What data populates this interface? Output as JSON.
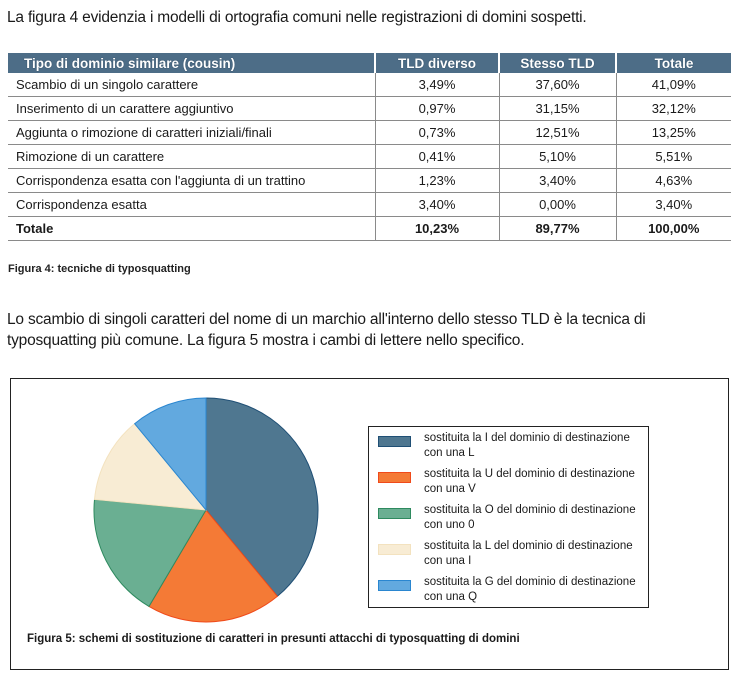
{
  "intro_text": "La figura 4 evidenzia i modelli di ortografia comuni nelle registrazioni di domini sospetti.",
  "table": {
    "headers": [
      "Tipo di dominio similare (cousin)",
      "TLD diverso",
      "Stesso TLD",
      "Totale"
    ],
    "header_color": "#4d6d87",
    "rows": [
      [
        "Scambio di un singolo carattere",
        "3,49%",
        "37,60%",
        "41,09%"
      ],
      [
        "Inserimento di un carattere aggiuntivo",
        "0,97%",
        "31,15%",
        "32,12%"
      ],
      [
        "Aggiunta o rimozione di caratteri iniziali/finali",
        "0,73%",
        "12,51%",
        "13,25%"
      ],
      [
        "Rimozione di un carattere",
        "0,41%",
        "5,10%",
        "5,51%"
      ],
      [
        "Corrispondenza esatta con l'aggiunta di un trattino",
        "1,23%",
        "3,40%",
        "4,63%"
      ],
      [
        "Corrispondenza esatta",
        "3,40%",
        "0,00%",
        "3,40%"
      ]
    ],
    "total_row": [
      "Totale",
      "10,23%",
      "89,77%",
      "100,00%"
    ]
  },
  "figure4_caption": "Figura 4: tecniche di typosquatting",
  "paragraph": "Lo scambio di singoli caratteri del nome di un marchio all'interno dello stesso TLD è la tecnica di typosquatting più comune. La figura 5 mostra i cambi di lettere nello specifico.",
  "chart_data": {
    "type": "pie",
    "title": "",
    "start": "top",
    "direction": "clockwise",
    "legend_position": "right",
    "slices": [
      {
        "label": "sostituita la I del dominio di destinazione con una L",
        "value": 39,
        "color": "#4f7790",
        "edge": "#1f4f75"
      },
      {
        "label": "sostituita la U del dominio di destinazione con una V",
        "value": 19.5,
        "color": "#f47a36",
        "edge": "#f04a1a"
      },
      {
        "label": "sostituita la O del dominio di destinazione con uno 0",
        "value": 18,
        "color": "#6aaf92",
        "edge": "#2e8a5f"
      },
      {
        "label": "sostituita la L del dominio di destinazione con una I",
        "value": 12.5,
        "color": "#f8ecd4",
        "edge": "#f3e2bf"
      },
      {
        "label": "sostituita la G del dominio di destinazione con una Q",
        "value": 11,
        "color": "#62a9df",
        "edge": "#2a86d0"
      }
    ]
  },
  "figure5_caption": "Figura 5: schemi di sostituzione di caratteri in presunti attacchi di typosquatting di domini"
}
